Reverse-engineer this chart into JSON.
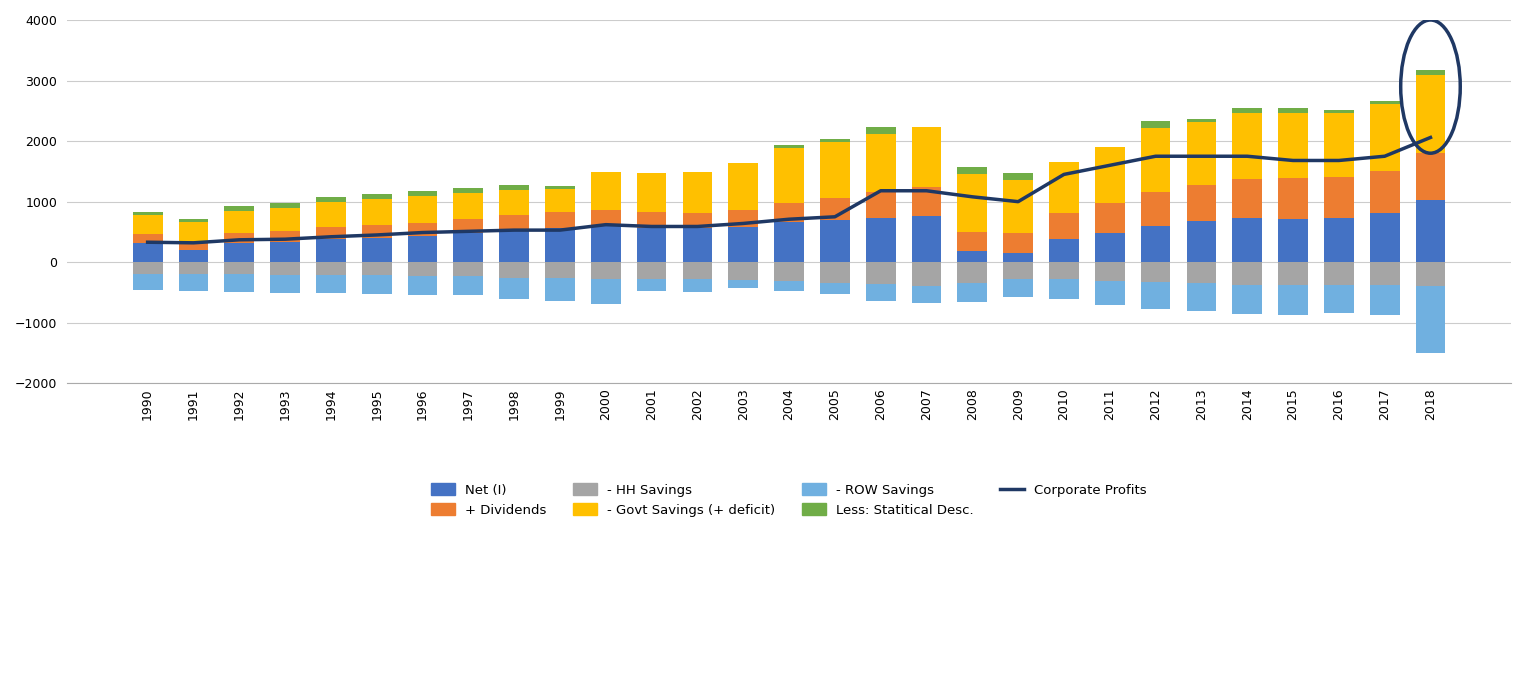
{
  "years": [
    1990,
    1991,
    1992,
    1993,
    1994,
    1995,
    1996,
    1997,
    1998,
    1999,
    2000,
    2001,
    2002,
    2003,
    2004,
    2005,
    2006,
    2007,
    2008,
    2009,
    2010,
    2011,
    2012,
    2013,
    2014,
    2015,
    2016,
    2017,
    2018
  ],
  "net_I": [
    310,
    200,
    310,
    340,
    380,
    400,
    430,
    480,
    520,
    560,
    590,
    560,
    560,
    575,
    660,
    690,
    730,
    760,
    180,
    160,
    390,
    480,
    600,
    680,
    730,
    720,
    730,
    810,
    1030
  ],
  "dividends": [
    155,
    155,
    170,
    175,
    200,
    215,
    220,
    240,
    260,
    265,
    280,
    275,
    255,
    280,
    320,
    375,
    430,
    480,
    320,
    320,
    420,
    500,
    560,
    590,
    650,
    670,
    680,
    700,
    780
  ],
  "hh_savings": [
    -195,
    -200,
    -200,
    -210,
    -210,
    -215,
    -225,
    -230,
    -255,
    -265,
    -270,
    -275,
    -285,
    -295,
    -310,
    -340,
    -360,
    -395,
    -345,
    -280,
    -280,
    -305,
    -325,
    -345,
    -370,
    -380,
    -370,
    -380,
    -395
  ],
  "row_savings": [
    -270,
    -280,
    -285,
    -295,
    -305,
    -305,
    -315,
    -315,
    -355,
    -375,
    -425,
    -200,
    -200,
    -130,
    -170,
    -180,
    -280,
    -280,
    -310,
    -300,
    -330,
    -400,
    -450,
    -460,
    -480,
    -490,
    -470,
    -500,
    -1100
  ],
  "less_stat": [
    50,
    50,
    80,
    80,
    80,
    80,
    70,
    70,
    70,
    60,
    0,
    0,
    0,
    0,
    50,
    50,
    120,
    0,
    120,
    120,
    0,
    0,
    120,
    50,
    80,
    80,
    50,
    50,
    80
  ],
  "govt_savings": [
    310,
    310,
    360,
    380,
    420,
    430,
    450,
    430,
    420,
    380,
    620,
    630,
    680,
    780,
    910,
    920,
    950,
    1000,
    950,
    880,
    840,
    920,
    1060,
    1050,
    1090,
    1070,
    1050,
    1100,
    1280
  ],
  "corp_profits": [
    330,
    320,
    370,
    380,
    420,
    450,
    490,
    510,
    530,
    530,
    620,
    590,
    590,
    640,
    710,
    750,
    1180,
    1180,
    1080,
    1000,
    1450,
    1600,
    1750,
    1750,
    1750,
    1680,
    1680,
    1750,
    2060
  ],
  "colors": {
    "net_I": "#4472C4",
    "dividends": "#ED7D31",
    "hh_savings": "#A5A5A5",
    "row_savings": "#70B0E0",
    "less_stat": "#70AD47",
    "govt_savings": "#FFC000",
    "corp_profits": "#1F3864"
  },
  "ylim": [
    -2000,
    4000
  ],
  "yticks": [
    -2000,
    -1000,
    0,
    1000,
    2000,
    3000,
    4000
  ],
  "background_color": "#FFFFFF"
}
